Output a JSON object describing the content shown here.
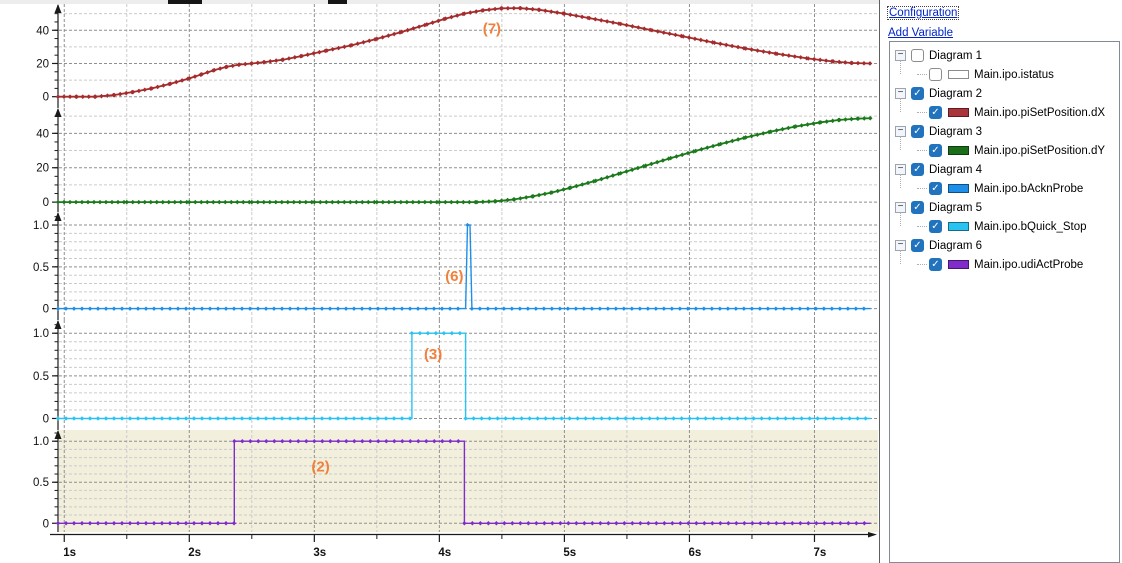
{
  "links": {
    "configuration": "Configuration",
    "add_variable": "Add Variable"
  },
  "icons": {
    "check": "✓",
    "collapse": "−"
  },
  "tree": {
    "items": [
      {
        "label": "Diagram 1",
        "checked": false,
        "children": [
          {
            "label": "Main.ipo.istatus",
            "checked": false,
            "color": "#FFFFFF"
          }
        ]
      },
      {
        "label": "Diagram 2",
        "checked": true,
        "children": [
          {
            "label": "Main.ipo.piSetPosition.dX",
            "checked": true,
            "color": "#A93439"
          }
        ]
      },
      {
        "label": "Diagram 3",
        "checked": true,
        "children": [
          {
            "label": "Main.ipo.piSetPosition.dY",
            "checked": true,
            "color": "#1A6E1A"
          }
        ]
      },
      {
        "label": "Diagram 4",
        "checked": true,
        "children": [
          {
            "label": "Main.ipo.bAcknProbe",
            "checked": true,
            "color": "#1E8FE8"
          }
        ]
      },
      {
        "label": "Diagram 5",
        "checked": true,
        "children": [
          {
            "label": "Main.ipo.bQuick_Stop",
            "checked": true,
            "color": "#29C3F2"
          }
        ]
      },
      {
        "label": "Diagram 6",
        "checked": true,
        "children": [
          {
            "label": "Main.ipo.udiActProbe",
            "checked": true,
            "color": "#7F2CCB"
          }
        ]
      }
    ]
  },
  "chart_data": {
    "type": "line",
    "x_unit": "s",
    "x_range": [
      0.95,
      7.5
    ],
    "x_ticks_major": [
      1,
      2,
      3,
      4,
      5,
      6,
      7
    ],
    "x_tick_labels": [
      "1s",
      "2s",
      "3s",
      "4s",
      "5s",
      "6s",
      "7s"
    ],
    "x_ticks_minor": [
      1.5,
      2.5,
      3.5,
      4.5,
      5.5,
      6.5
    ],
    "grid": {
      "dark": "#8F8F8F",
      "light": "#CBCBCB",
      "dash": "3 2"
    },
    "annotation_color": "#F0803C",
    "charts": [
      {
        "id": "dX",
        "name": "Main.ipo.piSetPosition.dX",
        "color": "#A52C2C",
        "ylim": [
          -5,
          54
        ],
        "y_major": [
          0,
          20,
          40
        ],
        "y_labels": [
          "0",
          "20",
          "40"
        ],
        "y_minor": [
          10,
          30,
          50
        ],
        "y_tickstep": 5,
        "bg": null,
        "lw": 1.8,
        "mstep": 6,
        "msize": 2.3,
        "annotation": {
          "text": "(7)",
          "t": 4.42,
          "v": 38
        },
        "points": [
          [
            0.95,
            0
          ],
          [
            1.1,
            0
          ],
          [
            1.25,
            0
          ],
          [
            1.4,
            1
          ],
          [
            1.55,
            2.8
          ],
          [
            1.7,
            5
          ],
          [
            1.85,
            7.8
          ],
          [
            2.0,
            11
          ],
          [
            2.1,
            13.5
          ],
          [
            2.2,
            16
          ],
          [
            2.3,
            18
          ],
          [
            2.4,
            19.3
          ],
          [
            2.5,
            20
          ],
          [
            2.6,
            20.8
          ],
          [
            2.75,
            22.3
          ],
          [
            2.9,
            24.5
          ],
          [
            3.1,
            27.8
          ],
          [
            3.3,
            31
          ],
          [
            3.5,
            34.8
          ],
          [
            3.7,
            39
          ],
          [
            3.9,
            43.5
          ],
          [
            4.05,
            47
          ],
          [
            4.2,
            50
          ],
          [
            4.35,
            52
          ],
          [
            4.5,
            53.2
          ],
          [
            4.65,
            53.3
          ],
          [
            4.8,
            52.3
          ],
          [
            5.0,
            50
          ],
          [
            5.2,
            47.3
          ],
          [
            5.45,
            43.8
          ],
          [
            5.7,
            40
          ],
          [
            5.95,
            36.3
          ],
          [
            6.2,
            32.5
          ],
          [
            6.45,
            29
          ],
          [
            6.7,
            25.8
          ],
          [
            6.95,
            23
          ],
          [
            7.15,
            21.2
          ],
          [
            7.3,
            20.3
          ],
          [
            7.45,
            20
          ]
        ]
      },
      {
        "id": "dY",
        "name": "Main.ipo.piSetPosition.dY",
        "color": "#1B7A1B",
        "ylim": [
          -4,
          53
        ],
        "y_major": [
          0,
          20,
          40
        ],
        "y_labels": [
          "0",
          "20",
          "40"
        ],
        "y_minor": [
          10,
          30,
          50
        ],
        "y_tickstep": 5,
        "bg": null,
        "lw": 1.8,
        "mstep": 6,
        "msize": 2.3,
        "annotation": null,
        "points": [
          [
            0.95,
            0
          ],
          [
            1.5,
            0
          ],
          [
            2.0,
            0
          ],
          [
            2.5,
            0
          ],
          [
            3.0,
            0
          ],
          [
            3.5,
            0
          ],
          [
            4.0,
            0
          ],
          [
            4.3,
            0
          ],
          [
            4.45,
            0.5
          ],
          [
            4.6,
            1.6
          ],
          [
            4.75,
            3.4
          ],
          [
            4.9,
            5.6
          ],
          [
            5.05,
            8.4
          ],
          [
            5.25,
            12.4
          ],
          [
            5.45,
            16.8
          ],
          [
            5.65,
            21.2
          ],
          [
            5.85,
            25.6
          ],
          [
            6.05,
            29.8
          ],
          [
            6.25,
            33.8
          ],
          [
            6.45,
            37.6
          ],
          [
            6.65,
            41
          ],
          [
            6.85,
            44
          ],
          [
            7.05,
            46.4
          ],
          [
            7.2,
            47.8
          ],
          [
            7.35,
            48.6
          ],
          [
            7.45,
            48.8
          ]
        ]
      },
      {
        "id": "bAcknProbe",
        "name": "Main.ipo.bAcknProbe",
        "color": "#1E8FE8",
        "ylim": [
          -0.1,
          1.12
        ],
        "y_major": [
          0,
          0.5,
          1.0
        ],
        "y_labels": [
          "0",
          "0.5",
          "1.0"
        ],
        "y_minor": [
          0.1,
          0.2,
          0.3,
          0.4,
          0.6,
          0.7,
          0.8,
          0.9
        ],
        "y_tickstep": 0.1,
        "bg": null,
        "lw": 1.4,
        "mstep": 8,
        "msize": 2.2,
        "annotation": {
          "text": "(6)",
          "t": 4.12,
          "v": 0.33
        },
        "points": [
          [
            0.95,
            0
          ],
          [
            4.21,
            0
          ],
          [
            4.225,
            1
          ],
          [
            4.245,
            1
          ],
          [
            4.26,
            0
          ],
          [
            7.45,
            0
          ]
        ]
      },
      {
        "id": "bQuick_Stop",
        "name": "Main.ipo.bQuick_Stop",
        "color": "#29C3F2",
        "ylim": [
          -0.1,
          1.12
        ],
        "y_major": [
          0,
          0.5,
          1.0
        ],
        "y_labels": [
          "0",
          "0.5",
          "1.0"
        ],
        "y_minor": [
          0.1,
          0.2,
          0.3,
          0.4,
          0.6,
          0.7,
          0.8,
          0.9
        ],
        "y_tickstep": 0.1,
        "bg": null,
        "lw": 1.4,
        "mstep": 8,
        "msize": 2.2,
        "annotation": {
          "text": "(3)",
          "t": 3.95,
          "v": 0.7
        },
        "points": [
          [
            0.95,
            0
          ],
          [
            3.78,
            0
          ],
          [
            3.78,
            1
          ],
          [
            4.21,
            1
          ],
          [
            4.21,
            0
          ],
          [
            7.45,
            0
          ]
        ]
      },
      {
        "id": "udiActProbe",
        "name": "Main.ipo.udiActProbe",
        "color": "#7F2CCB",
        "ylim": [
          -0.07,
          1.1
        ],
        "y_major": [
          0,
          0.5,
          1.0
        ],
        "y_labels": [
          "0",
          "0.5",
          "1.0"
        ],
        "y_minor": [
          0.1,
          0.2,
          0.3,
          0.4,
          0.6,
          0.7,
          0.8,
          0.9
        ],
        "y_tickstep": 0.1,
        "bg": "#F2EFDC",
        "lw": 1.4,
        "mstep": 8,
        "msize": 2.2,
        "annotation": {
          "text": "(2)",
          "t": 3.05,
          "v": 0.63
        },
        "points": [
          [
            0.95,
            0
          ],
          [
            2.36,
            0
          ],
          [
            2.36,
            1
          ],
          [
            4.2,
            1
          ],
          [
            4.2,
            0
          ],
          [
            7.45,
            0
          ]
        ]
      }
    ]
  }
}
